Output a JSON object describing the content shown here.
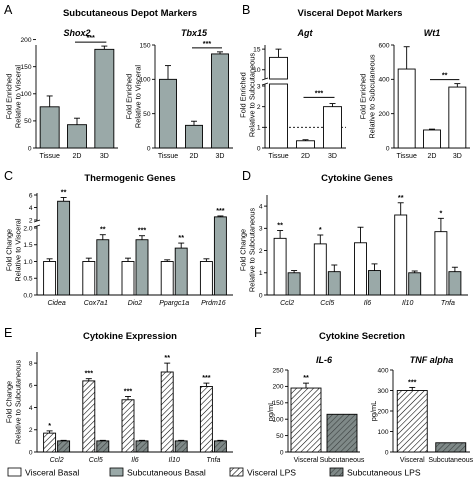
{
  "colors": {
    "grey": "#9aa9a8",
    "darkgrey": "#808a89",
    "white": "#ffffff",
    "stroke": "#000000"
  },
  "legend": {
    "visceral_basal": "Visceral Basal",
    "subcutaneous_basal": "Subcutaneous Basal",
    "visceral_lps": "Visceral LPS",
    "subcutaneous_lps": "Subcutaneous LPS"
  },
  "chart_data": [
    {
      "letter": "A",
      "panel_title": "Subcutaneous Depot Markers",
      "title": "Shox2",
      "type": "bar",
      "ylabel": [
        "Fold Enriched",
        "Relative to Visceral"
      ],
      "categories": [
        "Tissue",
        "2D",
        "3D"
      ],
      "values": [
        76,
        43,
        182
      ],
      "errors": [
        20,
        12,
        6
      ],
      "fill": "grey",
      "ylim": [
        0,
        190
      ],
      "yticks": [
        "0",
        "50",
        "100",
        "150",
        "200"
      ],
      "ytick_values": [
        0,
        50,
        100,
        150,
        200
      ],
      "sig": [
        {
          "between": [
            1,
            2
          ],
          "label": "***"
        }
      ]
    },
    {
      "letter": "",
      "panel_title": "",
      "title": "Tbx15",
      "type": "bar",
      "ylabel": [
        "Fold Enriched",
        "Relative to Visceral"
      ],
      "categories": [
        "Tissue",
        "2D",
        "3D"
      ],
      "values": [
        100,
        33,
        137
      ],
      "errors": [
        20,
        6,
        3
      ],
      "fill": "grey",
      "ylim": [
        0,
        150
      ],
      "yticks": [
        "0",
        "50",
        "100",
        "150"
      ],
      "ytick_values": [
        0,
        50,
        100,
        150
      ],
      "sig": [
        {
          "between": [
            1,
            2
          ],
          "label": "***"
        }
      ]
    },
    {
      "letter": "B",
      "panel_title": "Visceral Depot Markers",
      "title": "Agt",
      "type": "bar",
      "ylabel": [
        "Fold Enriched",
        "Relative to Subcutaneous"
      ],
      "categories": [
        "Tissue",
        "2D",
        "3D"
      ],
      "values": [
        13,
        0.35,
        2.0
      ],
      "errors": [
        2,
        0.05,
        0.15
      ],
      "fill": "white",
      "broken_axis": true,
      "reference_line": 1,
      "yticks_upper": [
        "10",
        "15"
      ],
      "ytick_upper_values": [
        10,
        15
      ],
      "yticks_lower": [
        "0",
        "1",
        "2",
        "3"
      ],
      "ytick_lower_values": [
        0,
        1,
        2,
        3
      ],
      "sig": [
        {
          "between": [
            1,
            2
          ],
          "label": "***"
        }
      ]
    },
    {
      "letter": "",
      "panel_title": "",
      "title": "Wt1",
      "type": "bar",
      "ylabel": [
        "Fold Enriched",
        "Relative to Subcutaneous"
      ],
      "categories": [
        "Tissue",
        "2D",
        "3D"
      ],
      "values": [
        460,
        105,
        355
      ],
      "errors": [
        130,
        5,
        20
      ],
      "fill": "white",
      "ylim": [
        0,
        600
      ],
      "yticks": [
        "0",
        "200",
        "400",
        "600"
      ],
      "ytick_values": [
        0,
        200,
        400,
        600
      ],
      "sig": [
        {
          "between": [
            1,
            2
          ],
          "label": "**"
        }
      ]
    },
    {
      "letter": "C",
      "panel_title": "Thermogenic Genes",
      "type": "bar",
      "ylabel": [
        "Fold Change",
        "Relative to Visceral"
      ],
      "categories": [
        "Cidea",
        "Cox7a1",
        "Dio2",
        "Ppargc1a",
        "Prdm16"
      ],
      "series": [
        {
          "fill": "white",
          "values": [
            1,
            1,
            1,
            1,
            1
          ],
          "errors": [
            0.08,
            0.1,
            0.1,
            0.05,
            0.08
          ]
        },
        {
          "fill": "grey",
          "values": [
            5,
            1.65,
            1.65,
            1.4,
            2.5
          ],
          "errors": [
            0.6,
            0.15,
            0.12,
            0.15,
            0.15
          ]
        }
      ],
      "broken_axis": true,
      "yticks_upper": [
        "2",
        "4",
        "6"
      ],
      "ytick_upper_values": [
        2,
        4,
        6
      ],
      "yticks_lower": [
        "0.0",
        "0.5",
        "1.0",
        "1.5",
        "2.0"
      ],
      "ytick_lower_values": [
        0,
        0.5,
        1,
        1.5,
        2
      ],
      "sig_labels": [
        "**",
        "**",
        "***",
        "**",
        "***"
      ]
    },
    {
      "letter": "D",
      "panel_title": "Cytokine Genes",
      "type": "bar",
      "ylabel": [
        "Fold Change",
        "Relative to Subcutaneous"
      ],
      "categories": [
        "Ccl2",
        "Ccl5",
        "Il6",
        "Il10",
        "Tnfa"
      ],
      "series": [
        {
          "fill": "white",
          "values": [
            2.55,
            2.3,
            2.35,
            3.6,
            2.85
          ],
          "errors": [
            0.35,
            0.4,
            0.7,
            0.55,
            0.6
          ]
        },
        {
          "fill": "grey",
          "values": [
            1,
            1.05,
            1.1,
            1.0,
            1.05
          ],
          "errors": [
            0.1,
            0.3,
            0.3,
            0.08,
            0.2
          ]
        }
      ],
      "ylim": [
        0,
        4.5
      ],
      "yticks": [
        "0",
        "1",
        "2",
        "3",
        "4"
      ],
      "ytick_values": [
        0,
        1,
        2,
        3,
        4
      ],
      "sig_labels": [
        "**",
        "*",
        "",
        "**",
        "*"
      ]
    },
    {
      "letter": "E",
      "panel_title": "Cytokine Expression",
      "type": "bar",
      "ylabel": [
        "Fold Change",
        "Relative to Subcutaneous"
      ],
      "categories": [
        "Ccl2",
        "Ccl5",
        "Il6",
        "Il10",
        "Tnfa"
      ],
      "series": [
        {
          "fill": "white_hatch",
          "values": [
            1.7,
            6.4,
            4.7,
            7.2,
            5.9
          ],
          "errors": [
            0.2,
            0.2,
            0.3,
            0.8,
            0.3
          ]
        },
        {
          "fill": "grey_hatch",
          "values": [
            1,
            1,
            1,
            1,
            1
          ],
          "errors": [
            0.05,
            0.05,
            0.05,
            0.05,
            0.05
          ]
        }
      ],
      "ylim": [
        0,
        9
      ],
      "yticks": [
        "0",
        "2",
        "4",
        "6",
        "8"
      ],
      "ytick_values": [
        0,
        2,
        4,
        6,
        8
      ],
      "sig_labels": [
        "*",
        "***",
        "***",
        "**",
        "***"
      ]
    },
    {
      "letter": "F",
      "panel_title": "Cytokine Secretion",
      "title": "IL-6",
      "type": "bar",
      "ylabel": [
        "pg/mL"
      ],
      "categories": [
        "Visceral",
        "Subcutaneous"
      ],
      "values": [
        195,
        115
      ],
      "errors": [
        15,
        0
      ],
      "fills": [
        "white_hatch",
        "grey_hatch"
      ],
      "ylim": [
        0,
        250
      ],
      "yticks": [
        "0",
        "50",
        "100",
        "150",
        "200",
        "250"
      ],
      "ytick_values": [
        0,
        50,
        100,
        150,
        200,
        250
      ],
      "sig_labels": [
        "**",
        ""
      ]
    },
    {
      "letter": "",
      "panel_title": "",
      "title": "TNF alpha",
      "type": "bar",
      "ylabel": [
        "pg/mL"
      ],
      "categories": [
        "Visceral",
        "Subcutaneous"
      ],
      "values": [
        300,
        45
      ],
      "errors": [
        15,
        0
      ],
      "fills": [
        "white_hatch",
        "grey_hatch"
      ],
      "ylim": [
        0,
        400
      ],
      "yticks": [
        "0",
        "100",
        "200",
        "300",
        "400"
      ],
      "ytick_values": [
        0,
        100,
        200,
        300,
        400
      ],
      "sig_labels": [
        "***",
        ""
      ]
    }
  ]
}
